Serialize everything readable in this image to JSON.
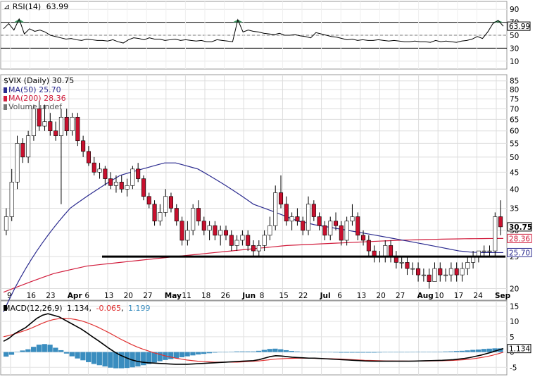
{
  "chart_data": [
    {
      "type": "line",
      "panel": "rsi",
      "label": "RSI(14)",
      "value": "63.99",
      "ticks": [
        90,
        70,
        50,
        30,
        10
      ],
      "ylim": [
        0,
        100
      ],
      "reference_lines": [
        70,
        30
      ],
      "highlight_label": "63.99",
      "colors": {
        "line": "#000000",
        "fill": "#1e8a4a"
      },
      "series": [
        {
          "values": [
            60,
            68,
            58,
            75,
            52,
            60,
            56,
            58,
            55,
            50,
            48,
            46,
            44,
            45,
            43,
            42,
            44,
            43,
            42,
            42,
            41,
            43,
            40,
            38,
            43,
            46,
            45,
            43,
            46,
            44,
            44,
            42,
            43,
            44,
            42,
            43,
            42,
            41,
            42,
            40,
            40,
            43,
            42,
            41,
            40,
            74,
            55,
            58,
            56,
            55,
            53,
            52,
            51,
            53,
            50,
            50,
            51,
            49,
            48,
            46,
            54,
            52,
            50,
            48,
            47,
            45,
            43,
            44,
            42,
            43,
            42,
            42,
            43,
            42,
            41,
            42,
            41,
            40,
            40,
            41,
            40,
            40,
            39,
            42,
            40,
            41,
            40,
            39,
            41,
            42,
            44,
            48,
            45,
            55,
            68,
            73,
            64
          ]
        }
      ]
    },
    {
      "type": "candlestick",
      "panel": "price",
      "title": "$VIX (Daily) 30.75",
      "legend": [
        {
          "label": "MA(50) 25.70",
          "color": "#2b2b8f"
        },
        {
          "label": "MA(200) 28.36",
          "color": "#d11c3c"
        },
        {
          "label": "Volume undef",
          "color": "#555555"
        }
      ],
      "yticks": [
        85,
        80,
        75,
        70,
        65,
        60,
        55,
        50,
        45,
        40,
        35,
        30,
        25,
        20
      ],
      "ylim": [
        19,
        87
      ],
      "scale": "log",
      "xticks": [
        "9",
        "16",
        "23",
        "Apr",
        "6",
        "13",
        "20",
        "27",
        "May",
        "11",
        "18",
        "26",
        "Jun",
        "8",
        "15",
        "22",
        "Jul",
        "6",
        "13",
        "20",
        "27",
        "Aug",
        "10",
        "17",
        "24",
        "Sep"
      ],
      "price_labels": [
        {
          "text": "30.75",
          "bold": true,
          "color": "#000000"
        },
        {
          "text": "28.36",
          "bold": false,
          "color": "#d11c3c"
        },
        {
          "text": "25.70",
          "bold": false,
          "color": "#2b2b8f"
        }
      ],
      "support_line": 25,
      "colors": {
        "up": "#ffffff",
        "down": "#c8102e",
        "ma50": "#2b2b8f",
        "ma200": "#d11c3c",
        "grid": "#dddddd"
      },
      "candles": [
        [
          30,
          35,
          29,
          33
        ],
        [
          33,
          46,
          32,
          42
        ],
        [
          42,
          58,
          40,
          55
        ],
        [
          55,
          57,
          48,
          50
        ],
        [
          50,
          60,
          48,
          58
        ],
        [
          58,
          72,
          56,
          70
        ],
        [
          70,
          74,
          60,
          62
        ],
        [
          62,
          72,
          60,
          64
        ],
        [
          64,
          68,
          58,
          60
        ],
        [
          60,
          64,
          56,
          58
        ],
        [
          58,
          70,
          36,
          66
        ],
        [
          66,
          70,
          58,
          60
        ],
        [
          60,
          68,
          58,
          66
        ],
        [
          66,
          68,
          54,
          56
        ],
        [
          56,
          58,
          50,
          52
        ],
        [
          52,
          54,
          47,
          48
        ],
        [
          48,
          50,
          44,
          45
        ],
        [
          45,
          48,
          43,
          46
        ],
        [
          46,
          47,
          41,
          43
        ],
        [
          43,
          45,
          40,
          41
        ],
        [
          41,
          44,
          39,
          42
        ],
        [
          42,
          44,
          39,
          40
        ],
        [
          40,
          43,
          38,
          41
        ],
        [
          41,
          47,
          40,
          46
        ],
        [
          46,
          48,
          42,
          43
        ],
        [
          43,
          44,
          37,
          38
        ],
        [
          38,
          39,
          35,
          36
        ],
        [
          36,
          37,
          31,
          32
        ],
        [
          32,
          36,
          31,
          34
        ],
        [
          34,
          40,
          33,
          38
        ],
        [
          38,
          39,
          34,
          35
        ],
        [
          35,
          36,
          31,
          32
        ],
        [
          32,
          33,
          27,
          28
        ],
        [
          28,
          32,
          27,
          30
        ],
        [
          30,
          36,
          29,
          35
        ],
        [
          35,
          37,
          31,
          32
        ],
        [
          32,
          33,
          29,
          30
        ],
        [
          30,
          32,
          28,
          31
        ],
        [
          31,
          32,
          28,
          29
        ],
        [
          29,
          31,
          27,
          30
        ],
        [
          30,
          31,
          28,
          29
        ],
        [
          29,
          30,
          26,
          27
        ],
        [
          27,
          29,
          26,
          28
        ],
        [
          28,
          30,
          27,
          29
        ],
        [
          29,
          30,
          26,
          27
        ],
        [
          27,
          28,
          25,
          26
        ],
        [
          26,
          28,
          25,
          27
        ],
        [
          27,
          30,
          26,
          29
        ],
        [
          29,
          33,
          28,
          31
        ],
        [
          31,
          41,
          30,
          39
        ],
        [
          39,
          44,
          35,
          36
        ],
        [
          36,
          38,
          31,
          32
        ],
        [
          32,
          34,
          30,
          33
        ],
        [
          33,
          35,
          31,
          32
        ],
        [
          32,
          33,
          29,
          30
        ],
        [
          30,
          38,
          29,
          36
        ],
        [
          36,
          37,
          32,
          33
        ],
        [
          33,
          34,
          30,
          31
        ],
        [
          31,
          32,
          28,
          29
        ],
        [
          29,
          33,
          28,
          32
        ],
        [
          32,
          34,
          30,
          31
        ],
        [
          31,
          32,
          27,
          28
        ],
        [
          28,
          33,
          27,
          32
        ],
        [
          32,
          36,
          31,
          33
        ],
        [
          33,
          34,
          28,
          29
        ],
        [
          29,
          30,
          27,
          28
        ],
        [
          28,
          29,
          25,
          26
        ],
        [
          26,
          27,
          24,
          25
        ],
        [
          25,
          26,
          24,
          25
        ],
        [
          25,
          28,
          24,
          27
        ],
        [
          27,
          28,
          24,
          25
        ],
        [
          25,
          26,
          23,
          24
        ],
        [
          24,
          25,
          23,
          24
        ],
        [
          24,
          25,
          22,
          23
        ],
        [
          23,
          24,
          22,
          23
        ],
        [
          23,
          24,
          21,
          22
        ],
        [
          22,
          23,
          21,
          22
        ],
        [
          22,
          23,
          20,
          21
        ],
        [
          21,
          24,
          21,
          23
        ],
        [
          23,
          24,
          21,
          22
        ],
        [
          22,
          23,
          21,
          22
        ],
        [
          22,
          24,
          21,
          23
        ],
        [
          23,
          24,
          21,
          22
        ],
        [
          22,
          24,
          21,
          23
        ],
        [
          23,
          25,
          22,
          24
        ],
        [
          24,
          26,
          23,
          25
        ],
        [
          25,
          26,
          24,
          26
        ],
        [
          26,
          27,
          25,
          26
        ],
        [
          26,
          27,
          25,
          26
        ],
        [
          26,
          34,
          25,
          33
        ],
        [
          33,
          37,
          29,
          30.75
        ]
      ],
      "ma50": [
        17,
        18.5,
        20,
        21.5,
        23,
        24.5,
        26,
        27.5,
        29,
        30.5,
        32,
        33.5,
        35,
        36,
        37,
        38,
        39,
        40,
        41,
        42,
        43,
        44,
        44.5,
        45,
        45.5,
        46,
        46.5,
        47,
        47.5,
        48,
        48,
        48,
        47.5,
        47,
        46.5,
        46,
        45,
        44,
        43,
        42,
        41,
        40,
        39,
        38,
        37,
        36,
        35.5,
        35,
        34.5,
        34,
        33.5,
        33,
        32.5,
        32,
        31.8,
        31.5,
        31.2,
        31,
        30.8,
        30.6,
        30.4,
        30.2,
        30,
        29.8,
        29.6,
        29.4,
        29.2,
        29,
        28.8,
        28.6,
        28.4,
        28.2,
        28,
        27.8,
        27.6,
        27.4,
        27.2,
        27,
        26.8,
        26.6,
        26.4,
        26.2,
        26,
        25.9,
        25.8,
        25.75,
        25.7,
        25.7,
        25.7,
        25.7,
        25.7
      ],
      "ma200": [
        19.5,
        19.8,
        20.1,
        20.4,
        20.7,
        21,
        21.3,
        21.6,
        21.9,
        22.2,
        22.4,
        22.6,
        22.8,
        23,
        23.2,
        23.4,
        23.5,
        23.6,
        23.7,
        23.8,
        23.9,
        24,
        24.1,
        24.2,
        24.3,
        24.4,
        24.5,
        24.6,
        24.7,
        24.8,
        24.9,
        25,
        25.1,
        25.2,
        25.3,
        25.4,
        25.5,
        25.6,
        25.7,
        25.8,
        25.9,
        26,
        26.1,
        26.2,
        26.3,
        26.4,
        26.5,
        26.6,
        26.7,
        26.8,
        26.9,
        27,
        27.05,
        27.1,
        27.15,
        27.2,
        27.25,
        27.3,
        27.35,
        27.4,
        27.45,
        27.5,
        27.55,
        27.6,
        27.65,
        27.7,
        27.75,
        27.8,
        27.85,
        27.9,
        27.95,
        28,
        28.03,
        28.06,
        28.09,
        28.12,
        28.15,
        28.18,
        28.2,
        28.22,
        28.24,
        28.26,
        28.28,
        28.3,
        28.31,
        28.32,
        28.33,
        28.34,
        28.35,
        28.36,
        28.36
      ]
    },
    {
      "type": "line",
      "panel": "macd",
      "label_main": "MACD(12,26,9)",
      "value_macd": "1.134",
      "value_signal": "-0.065",
      "value_hist": "1.199",
      "ticks": [
        15,
        10,
        5,
        0,
        -5
      ],
      "ylim": [
        -7,
        16
      ],
      "highlight_label": "1.134",
      "colors": {
        "macd": "#000000",
        "signal": "#e03030",
        "hist": "#3a8dbf",
        "value_hist": "#3a8dbf"
      },
      "series": [
        {
          "name": "MACD",
          "values": [
            3.5,
            4.5,
            6,
            7,
            8,
            9.5,
            11,
            12,
            12.5,
            12,
            11.5,
            10.5,
            9.5,
            8.5,
            7.5,
            6.3,
            5,
            3.8,
            2.5,
            1.2,
            0,
            -1,
            -1.8,
            -2.5,
            -3,
            -3.3,
            -3.5,
            -3.6,
            -3.7,
            -3.8,
            -3.9,
            -4,
            -4,
            -4,
            -3.9,
            -3.8,
            -3.7,
            -3.6,
            -3.5,
            -3.4,
            -3.3,
            -3.2,
            -3.1,
            -3,
            -2.9,
            -2.8,
            -2.5,
            -2,
            -1.5,
            -1.2,
            -1.3,
            -1.5,
            -1.7,
            -1.8,
            -1.9,
            -2,
            -2,
            -2.1,
            -2.2,
            -2.3,
            -2.4,
            -2.5,
            -2.6,
            -2.7,
            -2.8,
            -2.9,
            -2.95,
            -3,
            -3,
            -3,
            -3,
            -3,
            -3,
            -3,
            -2.95,
            -2.9,
            -2.85,
            -2.8,
            -2.75,
            -2.7,
            -2.6,
            -2.5,
            -2.3,
            -2.1,
            -1.8,
            -1.4,
            -1,
            -0.5,
            0,
            0.6,
            1.134
          ]
        },
        {
          "name": "Signal",
          "values": [
            5,
            5.4,
            5.9,
            6.5,
            7.1,
            7.8,
            8.6,
            9.4,
            10.1,
            10.6,
            10.9,
            11,
            10.9,
            10.6,
            10.2,
            9.6,
            8.9,
            8.1,
            7.2,
            6.3,
            5.3,
            4.3,
            3.4,
            2.5,
            1.7,
            1,
            0.4,
            -0.2,
            -0.7,
            -1.2,
            -1.6,
            -2,
            -2.3,
            -2.6,
            -2.8,
            -3,
            -3.1,
            -3.2,
            -3.3,
            -3.3,
            -3.3,
            -3.3,
            -3.3,
            -3.2,
            -3.1,
            -3,
            -2.9,
            -2.7,
            -2.5,
            -2.3,
            -2.2,
            -2.1,
            -2.05,
            -2,
            -2,
            -2,
            -2.05,
            -2.1,
            -2.15,
            -2.2,
            -2.25,
            -2.3,
            -2.4,
            -2.5,
            -2.6,
            -2.7,
            -2.75,
            -2.8,
            -2.85,
            -2.9,
            -2.92,
            -2.94,
            -2.95,
            -2.96,
            -2.96,
            -2.95,
            -2.93,
            -2.9,
            -2.87,
            -2.83,
            -2.78,
            -2.72,
            -2.62,
            -2.5,
            -2.33,
            -2.1,
            -1.8,
            -1.5,
            -1.1,
            -0.6,
            -0.065
          ]
        },
        {
          "name": "Histogram",
          "values": [
            -1.5,
            -0.9,
            0.1,
            0.5,
            0.9,
            1.7,
            2.4,
            2.6,
            2.4,
            1.4,
            0.6,
            -0.5,
            -1.4,
            -2.1,
            -2.7,
            -3.3,
            -3.9,
            -4.3,
            -4.7,
            -5.1,
            -5.3,
            -5.3,
            -5.2,
            -5,
            -4.7,
            -4.3,
            -3.9,
            -3.4,
            -3,
            -2.6,
            -2.3,
            -2,
            -1.7,
            -1.4,
            -1.1,
            -0.8,
            -0.6,
            -0.4,
            -0.2,
            -0.1,
            0,
            0.1,
            0.2,
            0.2,
            0.2,
            0.2,
            0.4,
            0.7,
            1,
            1.1,
            0.9,
            0.6,
            0.35,
            0.2,
            0.1,
            0,
            0.05,
            0,
            -0.05,
            -0.1,
            -0.15,
            -0.2,
            -0.2,
            -0.2,
            -0.2,
            -0.2,
            -0.2,
            -0.2,
            -0.15,
            -0.1,
            -0.08,
            -0.06,
            -0.05,
            -0.04,
            0.01,
            0.05,
            0.08,
            0.1,
            0.12,
            0.13,
            0.18,
            0.22,
            0.32,
            0.4,
            0.53,
            0.7,
            0.8,
            1,
            1.1,
            1.2,
            1.199
          ]
        }
      ]
    }
  ]
}
